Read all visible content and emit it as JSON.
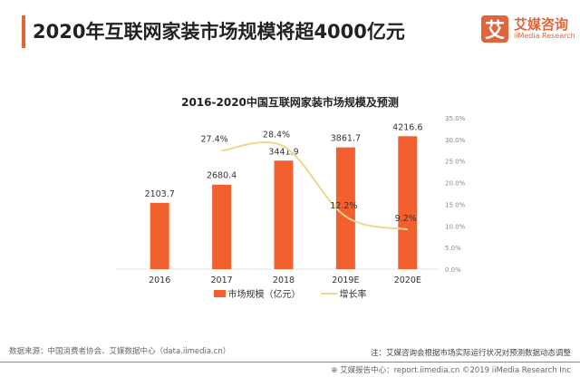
{
  "header": {
    "title": "2020年互联网家装市场规模将超4000亿元",
    "logo_mark": "艾",
    "logo_cn": "艾媒咨询",
    "logo_en": "iiMedia Research",
    "accent_color": "#e2643a"
  },
  "chart_data": {
    "type": "bar",
    "title": "2016-2020中国互联网家装市场规模及预测",
    "categories": [
      "2016",
      "2017",
      "2018",
      "2019E",
      "2020E"
    ],
    "series": [
      {
        "name": "市场规模（亿元）",
        "type": "bar",
        "axis": "left",
        "color": "#f2602f",
        "values": [
          2103.7,
          2680.4,
          3441.9,
          3861.7,
          4216.6
        ],
        "labels": [
          "2103.7",
          "2680.4",
          "3441.9",
          "3861.7",
          "4216.6"
        ]
      },
      {
        "name": "增长率",
        "type": "line",
        "axis": "right",
        "color": "#ecd88a",
        "values": [
          null,
          27.4,
          28.4,
          12.2,
          9.2
        ],
        "labels": [
          "",
          "27.4%",
          "28.4%",
          "12.2%",
          "9.2%"
        ]
      }
    ],
    "left_ylim": [
      0,
      4800
    ],
    "right_ylim": [
      0,
      35
    ],
    "right_ticks": [
      "0.0%",
      "5.0%",
      "10.0%",
      "15.0%",
      "20.0%",
      "25.0%",
      "30.0%",
      "35.0%"
    ],
    "legend_position": "bottom",
    "grid": false
  },
  "footer": {
    "source": "数据来源：中国消费者协会、艾媒数据中心（data.iimedia.cn）",
    "note": "注：艾媒咨询会根据市场实际运行状况对预测数据动态调整",
    "copyright": "艾媒报告中心：report.iimedia.cn  ©2019  iiMedia Research  Inc"
  }
}
